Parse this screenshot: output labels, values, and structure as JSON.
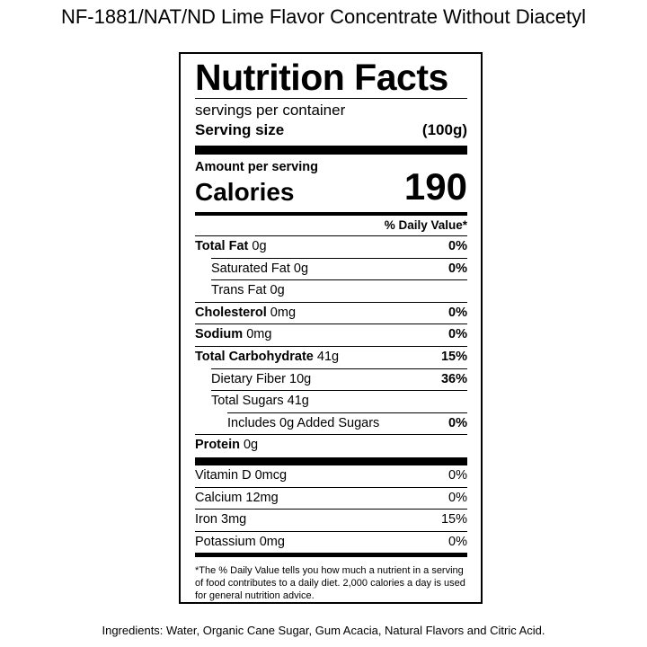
{
  "title": "NF-1881/NAT/ND Lime Flavor Concentrate Without Diacetyl",
  "label": {
    "heading": "Nutrition Facts",
    "servings": "servings per container",
    "serving_size_label": "Serving size",
    "serving_size_value": "(100g)",
    "amount_per_serving": "Amount per serving",
    "calories_label": "Calories",
    "calories": 190,
    "daily_value_header": "% Daily Value*",
    "nutrients": [
      {
        "name": "Total Fat",
        "amount": "0g",
        "dv": "0%"
      },
      {
        "name": "Saturated Fat",
        "amount": "0g",
        "dv": "0%"
      },
      {
        "name": "Trans Fat",
        "amount": "0g"
      },
      {
        "name": "Cholesterol",
        "amount": "0mg",
        "dv": "0%"
      },
      {
        "name": "Sodium",
        "amount": "0mg",
        "dv": "0%"
      },
      {
        "name": "Total Carbohydrate",
        "amount": "41g",
        "dv": "15%"
      },
      {
        "name": "Dietary Fiber",
        "amount": "10g",
        "dv": "36%"
      },
      {
        "name": "Total Sugars",
        "amount": "41g"
      },
      {
        "name": "Includes 0g Added Sugars",
        "dv": "0%"
      },
      {
        "name": "Protein",
        "amount": "0g"
      }
    ],
    "vitamins": [
      {
        "name": "Vitamin D 0mcg",
        "dv": "0%"
      },
      {
        "name": "Calcium 12mg",
        "dv": "0%"
      },
      {
        "name": "Iron 3mg",
        "dv": "15%"
      },
      {
        "name": "Potassium 0mg",
        "dv": "0%"
      }
    ],
    "footnote": "*The % Daily Value tells you how much a nutrient in a serving of food contributes to a daily diet. 2,000 calories a day is used for general nutrition advice."
  },
  "ingredients": "Ingredients: Water, Organic Cane Sugar, Gum Acacia, Natural Flavors and Citric Acid."
}
